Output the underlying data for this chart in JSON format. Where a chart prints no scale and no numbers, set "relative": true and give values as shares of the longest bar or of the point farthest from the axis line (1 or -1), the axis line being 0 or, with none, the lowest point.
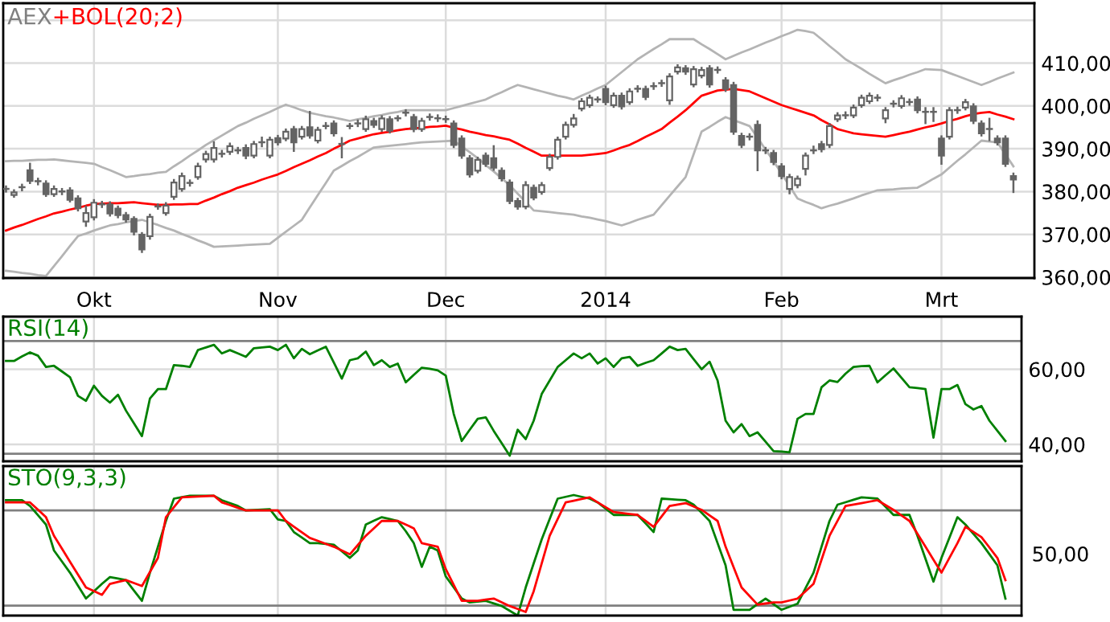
{
  "chart_data": [
    {
      "type": "candlestick",
      "title": "AEX",
      "color": "#646464",
      "categories": [
        null,
        null,
        null,
        null,
        null,
        null,
        null,
        null,
        null,
        null,
        null,
        "Okt",
        null,
        null,
        null,
        null,
        null,
        null,
        null,
        null,
        null,
        null,
        null,
        null,
        null,
        null,
        null,
        null,
        null,
        null,
        null,
        null,
        null,
        null,
        "Nov",
        null,
        null,
        null,
        null,
        null,
        null,
        null,
        null,
        null,
        null,
        null,
        null,
        null,
        null,
        null,
        null,
        null,
        null,
        null,
        null,
        "Dec",
        null,
        null,
        null,
        null,
        null,
        null,
        null,
        null,
        null,
        null,
        null,
        null,
        null,
        null,
        null,
        null,
        null,
        null,
        null,
        "2014",
        null,
        null,
        null,
        null,
        null,
        null,
        null,
        null,
        null,
        null,
        null,
        null,
        null,
        null,
        null,
        null,
        null,
        null,
        null,
        null,
        null,
        "Feb",
        null,
        null,
        null,
        null,
        null,
        null,
        null,
        null,
        null,
        null,
        null,
        null,
        null,
        null,
        null,
        null,
        null,
        null,
        null,
        "Mrt",
        null,
        null,
        null,
        null,
        null,
        null,
        null,
        null,
        null
      ],
      "ohlc": [
        [
          380.6,
          381.2,
          380.0,
          380.6
        ],
        [
          379.2,
          380.3,
          378.8,
          379.8
        ],
        [
          381.0,
          381.6,
          380.3,
          381.0
        ],
        [
          385.0,
          386.5,
          382.0,
          382.5
        ],
        [
          382.4,
          383.0,
          381.7,
          382.4
        ],
        [
          381.9,
          382.4,
          379.0,
          379.4
        ],
        [
          379.4,
          381.2,
          379.0,
          380.6
        ],
        [
          380.0,
          380.6,
          379.4,
          380.0
        ],
        [
          380.3,
          380.8,
          377.7,
          378.1
        ],
        [
          378.4,
          378.9,
          375.6,
          376.1
        ],
        [
          373.0,
          376.5,
          372.0,
          375.0
        ],
        [
          374.0,
          378.0,
          373.5,
          377.4
        ],
        [
          377.0,
          377.6,
          376.4,
          377.0
        ],
        [
          377.0,
          377.5,
          374.4,
          374.9
        ],
        [
          376.0,
          376.5,
          374.0,
          374.5
        ],
        [
          374.5,
          375.0,
          373.0,
          373.5
        ],
        [
          373.6,
          374.0,
          370.0,
          370.6
        ],
        [
          369.9,
          370.3,
          365.9,
          366.5
        ],
        [
          369.6,
          374.6,
          369.0,
          374.1
        ],
        [
          376.5,
          377.0,
          376.0,
          376.5
        ],
        [
          375.0,
          377.3,
          374.6,
          376.7
        ],
        [
          378.8,
          382.7,
          378.3,
          382.1
        ],
        [
          380.6,
          384.2,
          380.2,
          383.6
        ],
        [
          382.0,
          382.6,
          381.4,
          382.0
        ],
        [
          383.4,
          386.5,
          383.0,
          385.9
        ],
        [
          387.5,
          389.3,
          387.0,
          388.8
        ],
        [
          387.5,
          391.5,
          387.0,
          390.2
        ],
        [
          388.8,
          389.5,
          388.2,
          388.8
        ],
        [
          389.3,
          391.2,
          388.8,
          390.6
        ],
        [
          389.6,
          390.2,
          389.0,
          389.6
        ],
        [
          390.2,
          390.8,
          387.8,
          388.4
        ],
        [
          388.4,
          391.6,
          388.0,
          391.1
        ],
        [
          391.5,
          392.6,
          390.6,
          391.5
        ],
        [
          388.4,
          392.6,
          388.0,
          392.1
        ],
        [
          392.5,
          393.0,
          391.0,
          391.5
        ],
        [
          392.4,
          394.5,
          392.0,
          394.0
        ],
        [
          394.6,
          395.1,
          389.5,
          391.5
        ],
        [
          392.8,
          395.1,
          392.4,
          394.6
        ],
        [
          395.0,
          398.6,
          392.6,
          393.1
        ],
        [
          391.9,
          394.9,
          391.5,
          394.4
        ],
        [
          395.3,
          396.0,
          394.8,
          395.3
        ],
        [
          395.9,
          396.4,
          393.1,
          393.6
        ],
        [
          391.1,
          392.5,
          388.0,
          391.1
        ],
        [
          395.3,
          395.8,
          394.8,
          395.3
        ],
        [
          395.9,
          396.6,
          395.3,
          395.9
        ],
        [
          394.6,
          397.5,
          394.2,
          396.9
        ],
        [
          396.5,
          397.0,
          395.1,
          395.6
        ],
        [
          394.6,
          397.6,
          394.2,
          397.1
        ],
        [
          396.9,
          397.4,
          393.8,
          394.2
        ],
        [
          397.1,
          397.6,
          396.6,
          397.1
        ],
        [
          398.4,
          399.0,
          397.8,
          398.4
        ],
        [
          397.4,
          397.9,
          394.1,
          394.6
        ],
        [
          394.6,
          397.0,
          394.2,
          396.5
        ],
        [
          397.4,
          398.0,
          396.8,
          397.4
        ],
        [
          397.1,
          397.8,
          396.5,
          397.1
        ],
        [
          396.9,
          397.5,
          396.3,
          396.9
        ],
        [
          395.9,
          396.4,
          390.4,
          390.9
        ],
        [
          392.4,
          392.9,
          387.9,
          388.4
        ],
        [
          387.8,
          388.3,
          383.5,
          384.0
        ],
        [
          384.9,
          387.9,
          384.5,
          387.4
        ],
        [
          388.4,
          388.9,
          386.0,
          386.5
        ],
        [
          387.8,
          390.6,
          385.1,
          385.6
        ],
        [
          384.9,
          385.4,
          382.6,
          383.1
        ],
        [
          382.1,
          382.6,
          377.3,
          377.8
        ],
        [
          377.8,
          378.3,
          376.0,
          376.5
        ],
        [
          376.5,
          382.2,
          376.1,
          381.5
        ],
        [
          380.9,
          381.4,
          378.2,
          378.6
        ],
        [
          379.9,
          382.0,
          379.5,
          381.5
        ],
        [
          385.5,
          388.6,
          385.1,
          388.1
        ],
        [
          388.1,
          392.6,
          387.7,
          392.1
        ],
        [
          392.8,
          396.1,
          392.4,
          395.6
        ],
        [
          395.6,
          397.9,
          395.2,
          397.1
        ],
        [
          399.4,
          401.6,
          399.0,
          401.1
        ],
        [
          400.2,
          402.4,
          399.8,
          401.9
        ],
        [
          401.5,
          402.0,
          401.0,
          401.5
        ],
        [
          404.0,
          404.5,
          400.4,
          400.9
        ],
        [
          400.2,
          402.9,
          399.8,
          402.4
        ],
        [
          402.4,
          402.9,
          399.4,
          399.9
        ],
        [
          400.9,
          403.9,
          400.5,
          403.4
        ],
        [
          404.0,
          404.6,
          403.4,
          404.0
        ],
        [
          404.0,
          404.5,
          401.6,
          402.1
        ],
        [
          404.6,
          405.3,
          404.0,
          404.6
        ],
        [
          405.3,
          405.9,
          404.7,
          405.3
        ],
        [
          401.3,
          407.4,
          400.5,
          406.9
        ],
        [
          408.0,
          409.5,
          407.6,
          409.0
        ],
        [
          408.8,
          409.3,
          407.5,
          408.0
        ],
        [
          405.0,
          409.1,
          404.6,
          408.6
        ],
        [
          407.1,
          408.9,
          406.7,
          408.4
        ],
        [
          408.8,
          409.3,
          404.5,
          405.0
        ],
        [
          408.4,
          409.0,
          407.8,
          408.4
        ],
        [
          406.0,
          406.5,
          403.5,
          404.0
        ],
        [
          404.9,
          405.4,
          393.5,
          394.0
        ],
        [
          393.0,
          393.5,
          390.4,
          390.9
        ],
        [
          392.8,
          393.4,
          392.2,
          392.8
        ],
        [
          395.6,
          396.4,
          385.0,
          389.6
        ],
        [
          389.6,
          390.2,
          389.0,
          389.6
        ],
        [
          389.0,
          389.5,
          386.4,
          386.9
        ],
        [
          385.9,
          386.4,
          383.1,
          383.6
        ],
        [
          380.6,
          383.9,
          379.6,
          383.4
        ],
        [
          381.5,
          383.5,
          381.0,
          383.0
        ],
        [
          385.3,
          388.9,
          384.0,
          388.4
        ],
        [
          389.6,
          390.5,
          389.0,
          389.6
        ],
        [
          391.1,
          391.6,
          389.4,
          389.9
        ],
        [
          390.9,
          395.8,
          390.4,
          395.3
        ],
        [
          396.9,
          398.3,
          396.5,
          397.8
        ],
        [
          397.8,
          398.5,
          397.2,
          397.8
        ],
        [
          397.8,
          400.1,
          397.4,
          399.6
        ],
        [
          400.2,
          402.4,
          399.8,
          401.9
        ],
        [
          401.1,
          402.9,
          400.7,
          402.4
        ],
        [
          401.9,
          402.5,
          401.3,
          401.9
        ],
        [
          397.1,
          399.5,
          396.2,
          399.0
        ],
        [
          400.5,
          401.1,
          399.9,
          400.5
        ],
        [
          400.0,
          402.3,
          399.6,
          401.8
        ],
        [
          400.9,
          401.5,
          400.3,
          400.9
        ],
        [
          401.5,
          402.0,
          398.5,
          399.0
        ],
        [
          398.6,
          399.5,
          396.0,
          398.6
        ],
        [
          398.6,
          399.5,
          396.5,
          398.6
        ],
        [
          392.4,
          392.9,
          386.5,
          388.4
        ],
        [
          392.8,
          399.5,
          392.4,
          399.0
        ],
        [
          399.0,
          399.6,
          398.4,
          399.0
        ],
        [
          399.6,
          401.4,
          399.2,
          400.9
        ],
        [
          399.9,
          400.4,
          396.0,
          396.5
        ],
        [
          395.9,
          396.4,
          393.1,
          393.6
        ],
        [
          394.6,
          397.0,
          392.0,
          394.6
        ],
        [
          392.4,
          392.9,
          391.0,
          391.5
        ],
        [
          392.4,
          392.9,
          386.0,
          386.5
        ],
        [
          383.6,
          384.2,
          379.9,
          382.8
        ]
      ],
      "series": [
        {
          "name": "+BOL(20;2)",
          "type": "line",
          "color": "#ff0000",
          "values": [
            370.9,
            371.6,
            372.2,
            372.9,
            373.6,
            374.2,
            374.9,
            375.3,
            375.8,
            376.2,
            376.7,
            377.1,
            377.2,
            377.3,
            377.3,
            377.4,
            377.5,
            377.3,
            377.1,
            376.9,
            376.9,
            377.0,
            377.0,
            377.1,
            377.1,
            377.9,
            378.6,
            379.4,
            380.1,
            380.9,
            381.5,
            382.1,
            382.8,
            383.4,
            384,
            384.8,
            385.7,
            386.5,
            387.3,
            388.2,
            389,
            390,
            390.9,
            391.9,
            392.4,
            392.9,
            393.4,
            393.7,
            394,
            394.3,
            394.6,
            394.8,
            394.9,
            395.1,
            395.2,
            395.4,
            394.9,
            394.5,
            394,
            393.6,
            393.2,
            392.9,
            392.5,
            392.1,
            391.2,
            390.2,
            389.3,
            388.4,
            388.4,
            388.4,
            388.4,
            388.4,
            388.4,
            388.6,
            388.8,
            389,
            389.6,
            390.3,
            390.9,
            391.8,
            392.8,
            393.7,
            394.6,
            396.1,
            397.5,
            399,
            400.7,
            402.4,
            403,
            403.6,
            403.8,
            404,
            403.7,
            403.4,
            402.6,
            401.8,
            401,
            400.2,
            399.6,
            399,
            398.4,
            397.8,
            396.7,
            395.7,
            394.6,
            394.1,
            393.6,
            393.4,
            393.2,
            393,
            392.8,
            393.2,
            393.6,
            394,
            394.5,
            395,
            395.4,
            395.9,
            396.5,
            397,
            397.6,
            398.1,
            398.4,
            398.6,
            398,
            397.5,
            396.9
          ]
        },
        {
          "type": "line",
          "color": "#b4b4b4",
          "values": [
            387.1,
            387.2,
            387.2,
            387.3,
            387.4,
            387.4,
            387.5,
            387.3,
            387.1,
            386.9,
            386.7,
            386.5,
            385.7,
            385,
            384.2,
            383.4,
            383.6,
            383.9,
            384.1,
            384.4,
            384.6,
            385.9,
            387.1,
            388.4,
            389.6,
            390.9,
            392,
            393.1,
            394.2,
            395.3,
            396.1,
            397,
            397.8,
            398.6,
            399.5,
            400.3,
            399.7,
            399,
            398.4,
            398,
            397.6,
            397.3,
            396.9,
            396.5,
            396.9,
            397.2,
            397.6,
            397.9,
            398.3,
            398.6,
            399,
            399,
            399,
            399,
            399,
            399,
            399.5,
            400,
            400.5,
            401,
            401.5,
            402.4,
            403.2,
            404.1,
            404.9,
            404.4,
            403.9,
            403.4,
            402.9,
            402.4,
            402,
            401.5,
            402.4,
            403.2,
            404.1,
            404.9,
            406.4,
            407.9,
            409.4,
            410.9,
            412.1,
            413.3,
            414.4,
            415.6,
            415.6,
            415.6,
            415.6,
            414.4,
            413.3,
            412.1,
            410.9,
            411.7,
            412.5,
            413.2,
            414,
            414.8,
            415.5,
            416.3,
            417,
            417.8,
            417.5,
            417.1,
            415.6,
            414,
            412.5,
            410.9,
            409.8,
            408.7,
            407.5,
            406.4,
            405.3,
            406,
            406.6,
            407.3,
            407.9,
            408.6,
            408.5,
            408.4,
            407.7,
            407,
            406.3,
            405.6,
            404.9,
            405.6,
            406.4,
            407.1,
            407.8
          ]
        },
        {
          "type": "line",
          "color": "#b4b4b4",
          "values": [
            361.5,
            361.3,
            361,
            360.8,
            360.5,
            360.3,
            362.6,
            364.9,
            367.3,
            369.6,
            370.2,
            370.9,
            371.5,
            372.1,
            372.4,
            372.8,
            373.1,
            373.4,
            372.8,
            372.2,
            371.5,
            370.9,
            370.1,
            369.4,
            368.6,
            367.9,
            367.1,
            367.2,
            367.3,
            367.4,
            367.5,
            367.6,
            367.7,
            367.8,
            369.2,
            370.6,
            372,
            373.4,
            376.3,
            379.2,
            382,
            384.9,
            386,
            387.1,
            388.1,
            389.2,
            390.3,
            390.5,
            390.7,
            390.9,
            391.1,
            391.3,
            391.5,
            391.6,
            391.7,
            391.8,
            391.9,
            390.5,
            389.2,
            387.8,
            386.2,
            384.7,
            383.1,
            381.5,
            379.5,
            377.6,
            375.6,
            375.4,
            375.2,
            375,
            374.8,
            374.6,
            374.2,
            373.9,
            373.5,
            373.1,
            372.6,
            372.1,
            372.7,
            373.4,
            374,
            374.6,
            376.8,
            379,
            381.2,
            383.4,
            388.7,
            394,
            395.1,
            396.3,
            397.4,
            396.7,
            396,
            395.3,
            392.6,
            389.8,
            387.1,
            384.2,
            381.3,
            378.4,
            377.6,
            376.9,
            376.1,
            376.7,
            377.2,
            377.8,
            378.4,
            379.1,
            379.7,
            380.3,
            380.4,
            380.5,
            380.7,
            380.8,
            380.9,
            381.9,
            383,
            384,
            385.6,
            387.2,
            388.7,
            390.3,
            391.9,
            391.7,
            391.5,
            388.7,
            385.9
          ]
        }
      ],
      "ylim": [
        359.8,
        424
      ],
      "yticks": [
        {
          "value": 360,
          "label": "360,00"
        },
        {
          "value": 370,
          "label": "370,00"
        },
        {
          "value": 380,
          "label": "380,00"
        },
        {
          "value": 390,
          "label": "390,00"
        },
        {
          "value": 400,
          "label": "400,00"
        },
        {
          "value": 410,
          "label": "410,00"
        },
        {
          "value": 420,
          "label": null
        }
      ],
      "grid": true
    },
    {
      "type": "line",
      "categories": [
        null,
        null,
        null,
        null,
        null,
        null,
        null,
        null,
        null,
        null,
        null,
        null,
        null,
        null,
        null,
        null,
        null,
        null,
        null,
        null,
        null,
        null,
        null,
        null,
        null,
        null,
        null,
        null,
        null,
        null,
        null,
        null,
        null,
        null,
        null,
        null,
        null,
        null,
        null,
        null,
        null,
        null,
        null,
        null,
        null,
        null,
        null,
        null,
        null,
        null,
        null,
        null,
        null,
        null,
        null,
        null,
        null,
        null,
        null,
        null,
        null,
        null,
        null,
        null,
        null,
        null,
        null,
        null,
        null,
        null,
        null,
        null,
        null,
        null,
        null,
        null,
        null,
        null,
        null,
        null,
        null,
        null,
        null,
        null,
        null,
        null,
        null,
        null,
        null,
        null,
        null,
        null,
        null,
        null,
        null,
        null,
        null,
        null,
        null,
        null,
        null,
        null,
        null,
        null,
        null,
        null,
        null,
        null,
        null,
        null,
        null,
        null,
        null,
        null,
        null,
        null,
        null,
        null,
        null,
        null,
        null,
        null,
        null,
        null,
        null,
        null,
        null
      ],
      "series": [
        {
          "name": "RSI(14)",
          "color": "#008000",
          "values": [
            62.2,
            62.2,
            63.4,
            64.5,
            63.6,
            60.6,
            60.9,
            59.4,
            57.9,
            52.9,
            51.6,
            55.6,
            52.9,
            51.1,
            53.2,
            49.0,
            45.6,
            42.2,
            52.2,
            54.7,
            54.7,
            61.1,
            60.9,
            60.6,
            65.1,
            65.8,
            66.5,
            64.2,
            65.1,
            64.2,
            63.3,
            65.6,
            65.8,
            66.0,
            65.1,
            66.5,
            62.9,
            65.4,
            64.0,
            65.0,
            66.0,
            61.8,
            57.5,
            62.4,
            62.9,
            64.7,
            61.1,
            62.4,
            60.6,
            61.5,
            56.5,
            58.5,
            60.4,
            60.1,
            59.7,
            58.3,
            48.1,
            40.9,
            43.9,
            46.8,
            47.2,
            43.6,
            40.3,
            37.0,
            43.9,
            41.4,
            46.3,
            53.4,
            57.0,
            60.6,
            62.4,
            64.2,
            62.9,
            64.2,
            61.5,
            62.9,
            60.6,
            62.9,
            63.3,
            60.9,
            61.7,
            62.4,
            64.2,
            66.0,
            65.1,
            65.4,
            62.7,
            60.0,
            62.0,
            57.0,
            46.3,
            43.2,
            45.4,
            42.2,
            43.2,
            40.7,
            38.2,
            38.1,
            37.9,
            46.8,
            48.1,
            48.1,
            55.2,
            57.0,
            56.6,
            58.8,
            60.6,
            60.8,
            60.9,
            56.5,
            58.4,
            60.2,
            57.7,
            55.2,
            55.0,
            54.7,
            41.8,
            54.7,
            54.7,
            55.8,
            50.7,
            49.3,
            50.2,
            46.3,
            43.6,
            40.9,
            null
          ]
        }
      ],
      "ylim": [
        35.5,
        74
      ],
      "yticks": [
        {
          "value": 40,
          "label": "40,00"
        },
        {
          "value": 60,
          "label": "60,00"
        }
      ],
      "ref_lines": [
        {
          "axis": "y",
          "value": 67.5,
          "color": "#808080"
        },
        {
          "axis": "y",
          "value": 37.5,
          "color": "#808080"
        }
      ],
      "grid": true,
      "tick_labels": "y"
    },
    {
      "type": "line",
      "relative": true,
      "annotations": [
        "50,00"
      ],
      "categories": [
        null,
        null,
        null,
        null,
        null,
        null,
        null,
        null,
        null,
        null,
        null,
        null,
        null,
        null,
        null,
        null,
        null,
        null,
        null,
        null,
        null,
        null,
        null,
        null,
        null,
        null,
        null,
        null,
        null,
        null,
        null,
        null,
        null,
        null,
        null,
        null,
        null,
        null,
        null,
        null,
        null,
        null,
        null,
        null,
        null,
        null,
        null,
        null,
        null,
        null,
        null,
        null,
        null,
        null,
        null,
        null,
        null,
        null,
        null,
        null,
        null,
        null,
        null,
        null,
        null,
        null,
        null,
        null,
        null,
        null,
        null,
        null,
        null,
        null,
        null,
        null,
        null,
        null,
        null,
        null,
        null,
        null,
        null,
        null,
        null,
        null,
        null,
        null,
        null,
        null,
        null,
        null,
        null,
        null,
        null,
        null,
        null,
        null,
        null,
        null,
        null,
        null,
        null,
        null,
        null,
        null,
        null,
        null,
        null,
        null,
        null,
        null,
        null,
        null,
        null,
        null,
        null,
        null,
        null,
        null,
        null,
        null,
        null,
        null,
        null,
        null,
        null
      ],
      "series": [
        {
          "name": "STO(9,3,3)",
          "color": "#008000",
          "values": [
            0.957,
            0.957,
            0.957,
            0.909,
            0.832,
            0.755,
            0.54,
            0.448,
            0.356,
            0.249,
            0.141,
            0.202,
            0.263,
            0.319,
            0.307,
            0.294,
            0.208,
            0.122,
            0.356,
            0.571,
            0.785,
            0.97,
            0.982,
            0.994,
            0.994,
            0.994,
            0.994,
            0.957,
            0.933,
            0.909,
            0.872,
            0.876,
            0.879,
            0.883,
            0.798,
            0.785,
            0.693,
            0.647,
            0.601,
            0.601,
            0.595,
            0.588,
            0.533,
            0.478,
            0.54,
            0.755,
            0.786,
            0.816,
            0.801,
            0.785,
            0.7,
            0.601,
            0.404,
            0.571,
            0.54,
            0.325,
            0.233,
            0.141,
            0.109,
            0.116,
            0.122,
            0.101,
            0.079,
            0.04,
            0,
            0.233,
            0.433,
            0.632,
            0.801,
            0.97,
            0.985,
            1,
            0.985,
            0.97,
            0.939,
            0.887,
            0.835,
            0.835,
            0.835,
            0.835,
            0.764,
            0.693,
            0.97,
            0.966,
            0.961,
            0.957,
            0.92,
            0.853,
            0.785,
            0.601,
            0.417,
            0.048,
            0.048,
            0.048,
            0.095,
            0.141,
            0.095,
            0.048,
            0.073,
            0.098,
            0.227,
            0.356,
            0.571,
            0.785,
            0.92,
            0.94,
            0.961,
            0.981,
            0.976,
            0.97,
            0.903,
            0.835,
            0.835,
            0.835,
            0.662,
            0.472,
            0.282,
            0.478,
            0.647,
            0.816,
            0.755,
            0.678,
            0.601,
            0.509,
            0.417,
            0.141,
            null
          ]
        },
        {
          "color": "#ff0000",
          "values": [
            0.939,
            0.939,
            0.939,
            0.939,
            0.878,
            0.816,
            0.662,
            0.555,
            0.447,
            0.34,
            0.233,
            0.203,
            0.172,
            0.263,
            0.279,
            0.294,
            0.27,
            0.245,
            0.362,
            0.478,
            0.816,
            0.899,
            0.981,
            0.984,
            0.987,
            0.991,
            0.994,
            0.939,
            0.917,
            0.894,
            0.872,
            0.872,
            0.872,
            0.872,
            0.872,
            0.785,
            0.738,
            0.691,
            0.644,
            0.62,
            0.595,
            0.571,
            0.54,
            0.508,
            0.585,
            0.662,
            0.724,
            0.785,
            0.785,
            0.785,
            0.755,
            0.724,
            0.601,
            0.586,
            0.571,
            0.386,
            0.254,
            0.122,
            0.122,
            0.122,
            0.132,
            0.141,
            0.11,
            0.079,
            0.055,
            0.03,
            0.202,
            0.432,
            0.662,
            0.801,
            0.939,
            0.953,
            0.967,
            0.981,
            0.939,
            0.899,
            0.859,
            0.851,
            0.843,
            0.835,
            0.786,
            0.736,
            0.823,
            0.909,
            0.921,
            0.933,
            0.905,
            0.877,
            0.831,
            0.785,
            0.571,
            0.402,
            0.233,
            0.162,
            0.091,
            0.1,
            0.109,
            0.109,
            0.125,
            0.141,
            0.202,
            0.263,
            0.463,
            0.662,
            0.786,
            0.909,
            0.921,
            0.933,
            0.945,
            0.957,
            0.917,
            0.877,
            0.831,
            0.785,
            0.678,
            0.571,
            0.464,
            0.356,
            0.479,
            0.601,
            0.736,
            0.694,
            0.651,
            0.565,
            0.478,
            0.294,
            null
          ]
        }
      ],
      "ref_lines": [
        {
          "axis": "y",
          "value": 0.872,
          "color": "#808080"
        },
        {
          "axis": "y",
          "value": 0.083,
          "color": "#808080"
        }
      ],
      "grid": "x",
      "tick_labels": false
    }
  ]
}
